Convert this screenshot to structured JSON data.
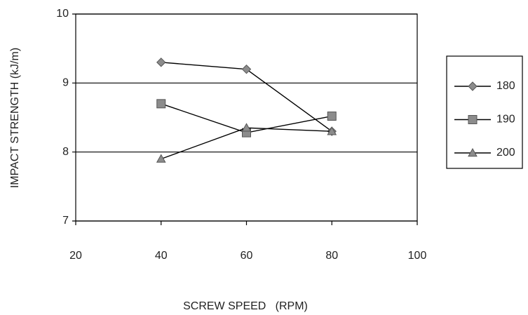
{
  "chart_data": {
    "type": "line",
    "x_label": "SCREW SPEED   (RPM)",
    "y_label": "IMPACT STRENGTH (kJ/m)",
    "xlim": [
      20,
      100
    ],
    "xticks": [
      20,
      40,
      60,
      80,
      100
    ],
    "ylim": [
      7,
      10
    ],
    "yticks": [
      7,
      8,
      9,
      10
    ],
    "grid": true,
    "legend": "right",
    "series": [
      {
        "name": "180",
        "color": "#000000",
        "marker": "diamond",
        "x": [
          40,
          60,
          80
        ],
        "values": [
          9.3,
          9.2,
          8.3
        ]
      },
      {
        "name": "190",
        "color": "#000000",
        "marker": "square",
        "x": [
          40,
          60,
          80
        ],
        "values": [
          8.7,
          8.28,
          8.52
        ]
      },
      {
        "name": "200",
        "color": "#000000",
        "marker": "triangle",
        "x": [
          40,
          60,
          80
        ],
        "values": [
          7.9,
          8.35,
          8.3
        ]
      }
    ]
  }
}
